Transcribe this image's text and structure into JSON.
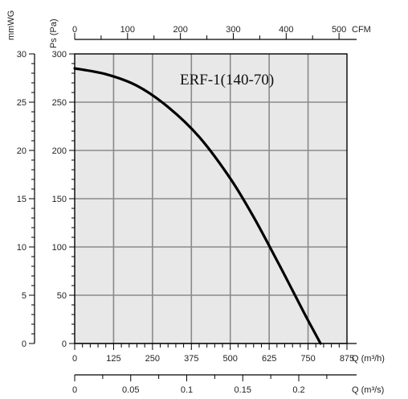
{
  "chart_data": {
    "type": "line",
    "title": "ERF-1(140-70)",
    "grid": true,
    "plot_background": "#e8e8e8",
    "curve_color": "#000000",
    "series": [
      {
        "x": [
          0,
          100,
          200,
          300,
          400,
          500,
          575,
          650,
          700,
          740,
          770,
          790
        ],
        "y": [
          285,
          279,
          267,
          245,
          214,
          171,
          131,
          86,
          55,
          30,
          12,
          0
        ]
      }
    ],
    "axes": {
      "flow_m3h": {
        "label": "Q (m³/h)",
        "range": [
          0,
          875
        ],
        "ticks": [
          "0",
          "125",
          "250",
          "375",
          "500",
          "625",
          "750",
          "875"
        ]
      },
      "flow_cfm": {
        "label": "CFM",
        "range": [
          0,
          515
        ],
        "ticks": [
          "0",
          "100",
          "200",
          "300",
          "400",
          "500"
        ]
      },
      "flow_m3s": {
        "label": "Q (m³/s)",
        "range": [
          0,
          0.243
        ],
        "ticks": [
          "0",
          "0.05",
          "0.1",
          "0.15",
          "0.2"
        ]
      },
      "pressure_pa": {
        "label": "Ps (Pa)",
        "range": [
          0,
          300
        ],
        "ticks": [
          "0",
          "50",
          "100",
          "150",
          "200",
          "250",
          "300"
        ]
      },
      "pressure_mmwg": {
        "label": "mmWG",
        "range": [
          0,
          30
        ],
        "ticks": [
          "0",
          "5",
          "10",
          "15",
          "20",
          "25",
          "30"
        ]
      }
    }
  }
}
